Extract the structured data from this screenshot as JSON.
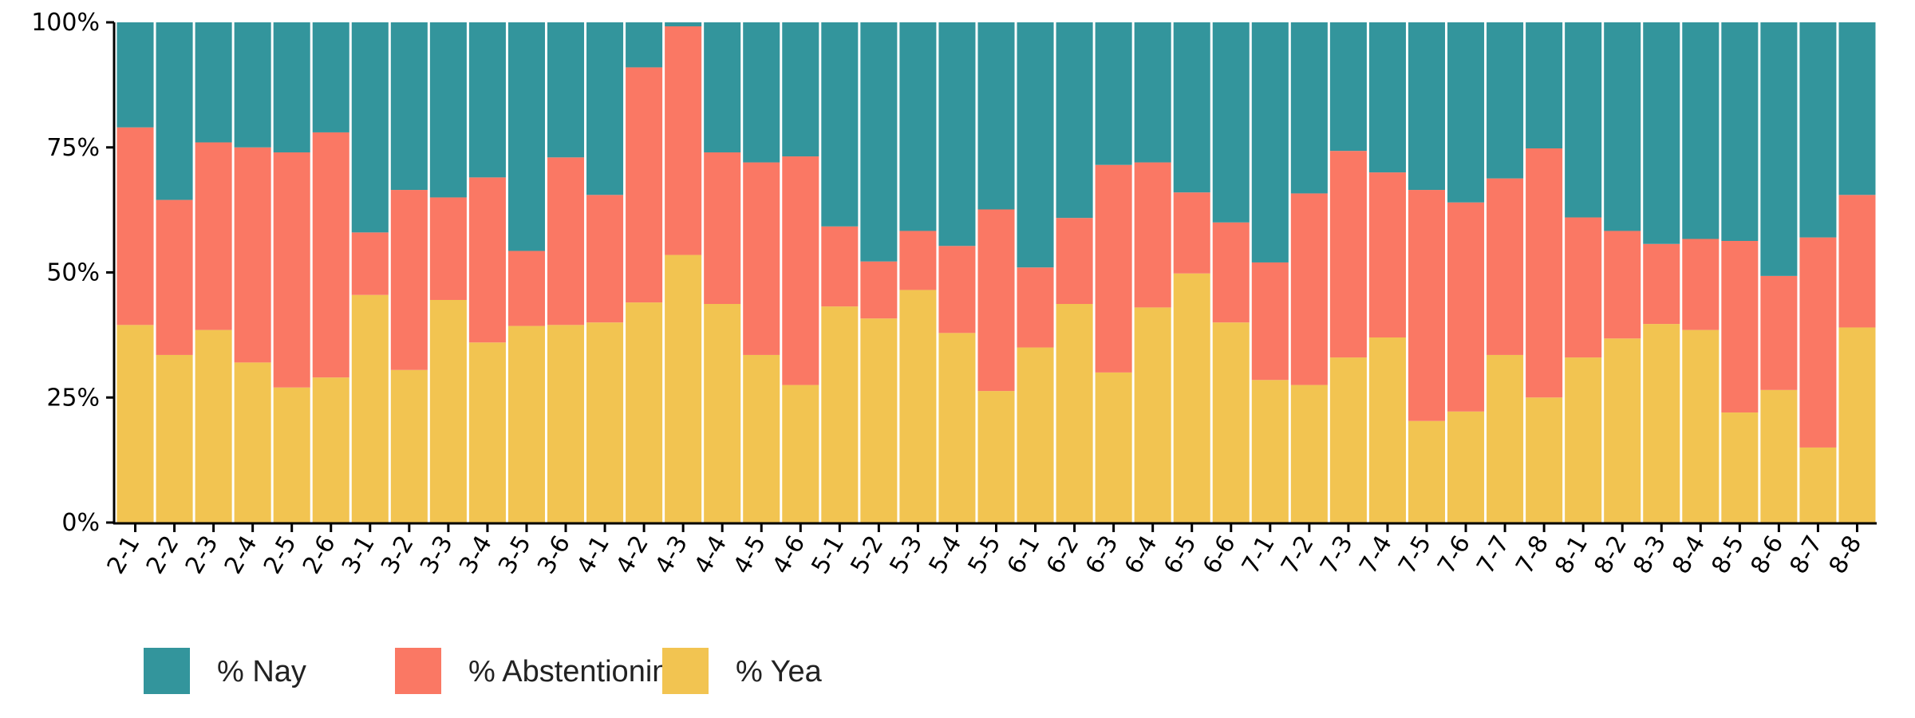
{
  "chart_data": {
    "type": "bar",
    "stacked": true,
    "normalized": true,
    "categories": [
      "2-1",
      "2-2",
      "2-3",
      "2-4",
      "2-5",
      "2-6",
      "3-1",
      "3-2",
      "3-3",
      "3-4",
      "3-5",
      "3-6",
      "4-1",
      "4-2",
      "4-3",
      "4-4",
      "4-5",
      "4-6",
      "5-1",
      "5-2",
      "5-3",
      "5-4",
      "5-5",
      "6-1",
      "6-2",
      "6-3",
      "6-4",
      "6-5",
      "6-6",
      "7-1",
      "7-2",
      "7-3",
      "7-4",
      "7-5",
      "7-6",
      "7-7",
      "7-8",
      "8-1",
      "8-2",
      "8-3",
      "8-4",
      "8-5",
      "8-6",
      "8-7",
      "8-8"
    ],
    "series": [
      {
        "name": "% Yea",
        "color": "#F2C451",
        "values": [
          39.5,
          33.5,
          38.5,
          32,
          27,
          29,
          45.5,
          30.5,
          44.5,
          36,
          39.3,
          39.5,
          40,
          44,
          53.5,
          43.7,
          33.5,
          27.5,
          43.2,
          40.8,
          46.5,
          37.9,
          26.3,
          35,
          43.7,
          30,
          43,
          49.8,
          40,
          28.5,
          27.5,
          33,
          37,
          20.3,
          22.2,
          33.5,
          25,
          33,
          36.8,
          39.7,
          38.5,
          22,
          26.5,
          15,
          39
        ]
      },
      {
        "name": "% Abstentionin",
        "color": "#FA7864",
        "values": [
          39.5,
          31,
          37.5,
          43,
          47,
          49,
          12.5,
          36,
          20.5,
          33,
          15,
          33.5,
          25.5,
          47,
          45.7,
          30.3,
          38.5,
          45.7,
          16,
          11.4,
          11.8,
          17.4,
          36.3,
          16,
          17.2,
          41.5,
          29,
          16.2,
          20,
          23.5,
          38.3,
          41.3,
          33,
          46.2,
          41.8,
          35.3,
          49.8,
          28,
          21.5,
          16,
          18.2,
          34.3,
          22.8,
          42,
          26.5
        ]
      },
      {
        "name": "% Nay",
        "color": "#33959C",
        "values": [
          21,
          35.5,
          24,
          25,
          26,
          22,
          42,
          33.5,
          35,
          31,
          45.7,
          27,
          34.5,
          9,
          0.8,
          26,
          28,
          26.8,
          40.8,
          47.8,
          41.7,
          44.7,
          37.4,
          49,
          39.1,
          28.5,
          28,
          34,
          40,
          48,
          34.2,
          25.7,
          30,
          33.5,
          36,
          31.2,
          25.2,
          39,
          41.7,
          44.3,
          43.3,
          43.7,
          50.7,
          43,
          34.5
        ]
      }
    ],
    "legend_order": [
      "% Nay",
      "% Abstentionin",
      "% Yea"
    ],
    "yticks": [
      "0%",
      "25%",
      "50%",
      "75%",
      "100%"
    ],
    "ylim": [
      0,
      100
    ],
    "xlabel": "",
    "ylabel": "",
    "title": "",
    "legend_position": "bottom-left",
    "grid": false
  }
}
